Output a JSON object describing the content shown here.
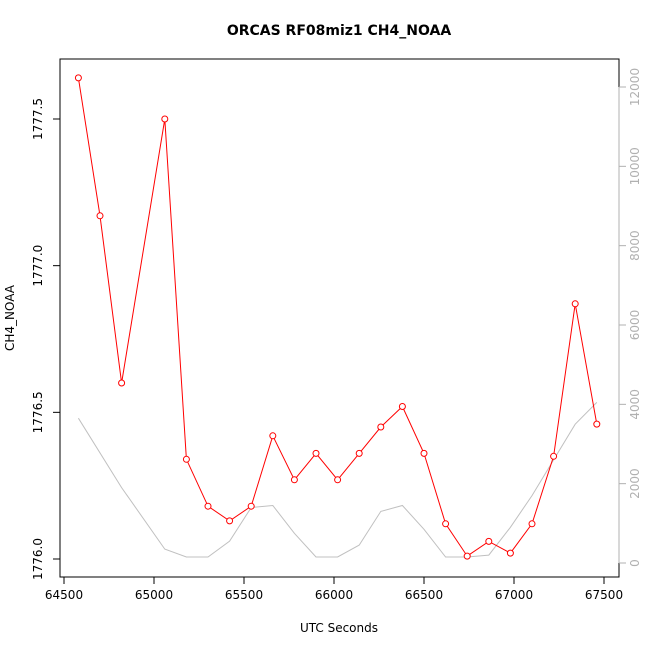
{
  "chart_data": {
    "type": "line",
    "title": "ORCAS RF08miz1 CH4_NOAA",
    "xlabel": "UTC Seconds",
    "ylabel": "CH4_NOAA",
    "xlim": [
      64500,
      67500
    ],
    "ylim": [
      1776.0,
      1777.5
    ],
    "y2lim": [
      0,
      12000
    ],
    "x_ticks": [
      "64500",
      "65000",
      "65500",
      "66000",
      "66500",
      "67000",
      "67500"
    ],
    "y_ticks": [
      "1776.0",
      "1776.5",
      "1777.0",
      "1777.5"
    ],
    "y2_ticks": [
      "0",
      "2000",
      "4000",
      "6000",
      "8000",
      "10000",
      "12000"
    ],
    "grid": false,
    "series": [
      {
        "axis": "left",
        "color": "#ff0000",
        "markers": "open-circle",
        "x": [
          64580,
          64700,
          64820,
          65060,
          65180,
          65300,
          65420,
          65540,
          65660,
          65780,
          65900,
          66020,
          66140,
          66260,
          66380,
          66500,
          66620,
          66740,
          66860,
          66980,
          67100,
          67220,
          67340,
          67460
        ],
        "y": [
          1777.64,
          1777.17,
          1776.6,
          1777.5,
          1776.34,
          1776.18,
          1776.13,
          1776.18,
          1776.42,
          1776.27,
          1776.36,
          1776.27,
          1776.36,
          1776.45,
          1776.52,
          1776.36,
          1776.12,
          1776.01,
          1776.06,
          1776.02,
          1776.12,
          1776.35,
          1776.87,
          1776.46
        ]
      },
      {
        "axis": "right",
        "color": "#c0c0c0",
        "markers": "none",
        "x": [
          64580,
          64820,
          65060,
          65180,
          65300,
          65420,
          65540,
          65660,
          65780,
          65900,
          66020,
          66140,
          66260,
          66380,
          66500,
          66620,
          66740,
          66860,
          66980,
          67100,
          67220,
          67340,
          67460
        ],
        "y": [
          3650,
          1900,
          350,
          150,
          150,
          550,
          1400,
          1450,
          750,
          150,
          150,
          450,
          1300,
          1450,
          850,
          150,
          150,
          200,
          900,
          1700,
          2600,
          3500,
          4050
        ]
      }
    ]
  }
}
